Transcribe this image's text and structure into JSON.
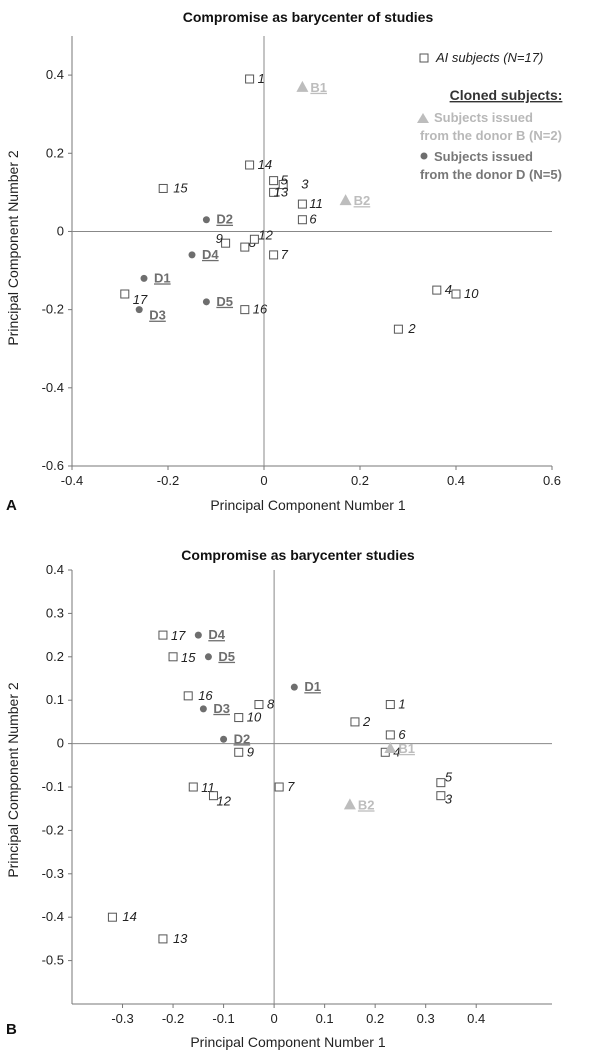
{
  "chart_data": [
    {
      "type": "scatter",
      "panel_label": "A",
      "title": "Compromise as barycenter of studies",
      "xlabel": "Principal Component Number 1",
      "ylabel": "Principal Component Number 2",
      "xlim": [
        -0.4,
        0.6
      ],
      "ylim": [
        -0.6,
        0.5
      ],
      "xticks": [
        "-0.4",
        "-0.2",
        "0",
        "0.2",
        "0.4",
        "0.6"
      ],
      "yticks": [
        "0.4",
        "0.2",
        "0",
        "-0.2",
        "-0.4",
        "-0.6"
      ],
      "xtick_values": [
        -0.4,
        -0.2,
        0,
        0.2,
        0.4,
        0.6
      ],
      "ytick_values": [
        0.4,
        0.2,
        0,
        -0.2,
        -0.4,
        -0.6
      ],
      "legend": {
        "ai_label": "AI subjects (N=17)",
        "cloned_header": "Cloned subjects:",
        "b_line1": "Subjects issued",
        "b_line2": "from the donor B (N=2)",
        "d_line1": "Subjects issued",
        "d_line2": "from the donor D (N=5)"
      },
      "series": [
        {
          "name": "AI subjects (N=17)",
          "marker": "square",
          "points": [
            {
              "label": "1",
              "x": -0.03,
              "y": 0.39
            },
            {
              "label": "2",
              "x": 0.28,
              "y": -0.25
            },
            {
              "label": "3",
              "x": 0.04,
              "y": 0.12
            },
            {
              "label": "4",
              "x": 0.36,
              "y": -0.15
            },
            {
              "label": "5",
              "x": 0.02,
              "y": 0.13
            },
            {
              "label": "6",
              "x": 0.08,
              "y": 0.03
            },
            {
              "label": "7",
              "x": 0.02,
              "y": -0.06
            },
            {
              "label": "8",
              "x": -0.04,
              "y": -0.04
            },
            {
              "label": "9",
              "x": -0.08,
              "y": -0.03
            },
            {
              "label": "10",
              "x": 0.4,
              "y": -0.16
            },
            {
              "label": "11",
              "x": 0.08,
              "y": 0.07
            },
            {
              "label": "12",
              "x": -0.02,
              "y": -0.02
            },
            {
              "label": "13",
              "x": 0.02,
              "y": 0.1
            },
            {
              "label": "14",
              "x": -0.03,
              "y": 0.17
            },
            {
              "label": "15",
              "x": -0.21,
              "y": 0.11
            },
            {
              "label": "16",
              "x": -0.04,
              "y": -0.2
            },
            {
              "label": "17",
              "x": -0.29,
              "y": -0.16
            }
          ]
        },
        {
          "name": "Subjects issued from the donor B (N=2)",
          "marker": "triangle",
          "color": "#bdbdbd",
          "points": [
            {
              "label": "B1",
              "x": 0.08,
              "y": 0.37
            },
            {
              "label": "B2",
              "x": 0.17,
              "y": 0.08
            }
          ]
        },
        {
          "name": "Subjects issued from the donor D (N=5)",
          "marker": "circle",
          "color": "#6e6e6e",
          "points": [
            {
              "label": "D1",
              "x": -0.25,
              "y": -0.12
            },
            {
              "label": "D2",
              "x": -0.12,
              "y": 0.03
            },
            {
              "label": "D3",
              "x": -0.26,
              "y": -0.2
            },
            {
              "label": "D4",
              "x": -0.15,
              "y": -0.06
            },
            {
              "label": "D5",
              "x": -0.12,
              "y": -0.18
            }
          ]
        }
      ]
    },
    {
      "type": "scatter",
      "panel_label": "B",
      "title": "Compromise as barycenter studies",
      "xlabel": "Principal Component Number 1",
      "ylabel": "Principal Component Number 2",
      "xlim": [
        -0.4,
        0.55
      ],
      "ylim": [
        -0.6,
        0.4
      ],
      "xticks": [
        "-0.3",
        "-0.2",
        "-0.1",
        "0",
        "0.1",
        "0.2",
        "0.3",
        "0.4"
      ],
      "yticks": [
        "0.4",
        "0.3",
        "0.2",
        "0.1",
        "0",
        "-0.1",
        "-0.2",
        "-0.3",
        "-0.4",
        "-0.5"
      ],
      "xtick_values": [
        -0.3,
        -0.2,
        -0.1,
        0,
        0.1,
        0.2,
        0.3,
        0.4
      ],
      "ytick_values": [
        0.4,
        0.3,
        0.2,
        0.1,
        0,
        -0.1,
        -0.2,
        -0.3,
        -0.4,
        -0.5
      ],
      "series": [
        {
          "name": "AI subjects (N=17)",
          "marker": "square",
          "points": [
            {
              "label": "1",
              "x": 0.23,
              "y": 0.09
            },
            {
              "label": "2",
              "x": 0.16,
              "y": 0.05
            },
            {
              "label": "3",
              "x": 0.33,
              "y": -0.12
            },
            {
              "label": "4",
              "x": 0.22,
              "y": -0.02
            },
            {
              "label": "5",
              "x": 0.33,
              "y": -0.09
            },
            {
              "label": "6",
              "x": 0.23,
              "y": 0.02
            },
            {
              "label": "7",
              "x": 0.01,
              "y": -0.1
            },
            {
              "label": "8",
              "x": -0.03,
              "y": 0.09
            },
            {
              "label": "9",
              "x": -0.07,
              "y": -0.02
            },
            {
              "label": "10",
              "x": -0.07,
              "y": 0.06
            },
            {
              "label": "11",
              "x": -0.16,
              "y": -0.1
            },
            {
              "label": "12",
              "x": -0.12,
              "y": -0.12
            },
            {
              "label": "13",
              "x": -0.22,
              "y": -0.45
            },
            {
              "label": "14",
              "x": -0.32,
              "y": -0.4
            },
            {
              "label": "15",
              "x": -0.2,
              "y": 0.2
            },
            {
              "label": "16",
              "x": -0.17,
              "y": 0.11
            },
            {
              "label": "17",
              "x": -0.22,
              "y": 0.25
            }
          ]
        },
        {
          "name": "Subjects issued from the donor B (N=2)",
          "marker": "triangle",
          "color": "#bdbdbd",
          "points": [
            {
              "label": "B1",
              "x": 0.23,
              "y": -0.01
            },
            {
              "label": "B2",
              "x": 0.15,
              "y": -0.14
            }
          ]
        },
        {
          "name": "Subjects issued from the donor D (N=5)",
          "marker": "circle",
          "color": "#6e6e6e",
          "points": [
            {
              "label": "D1",
              "x": 0.04,
              "y": 0.13
            },
            {
              "label": "D2",
              "x": -0.1,
              "y": 0.01
            },
            {
              "label": "D3",
              "x": -0.14,
              "y": 0.08
            },
            {
              "label": "D4",
              "x": -0.15,
              "y": 0.25
            },
            {
              "label": "D5",
              "x": -0.13,
              "y": 0.2
            }
          ]
        }
      ]
    }
  ]
}
